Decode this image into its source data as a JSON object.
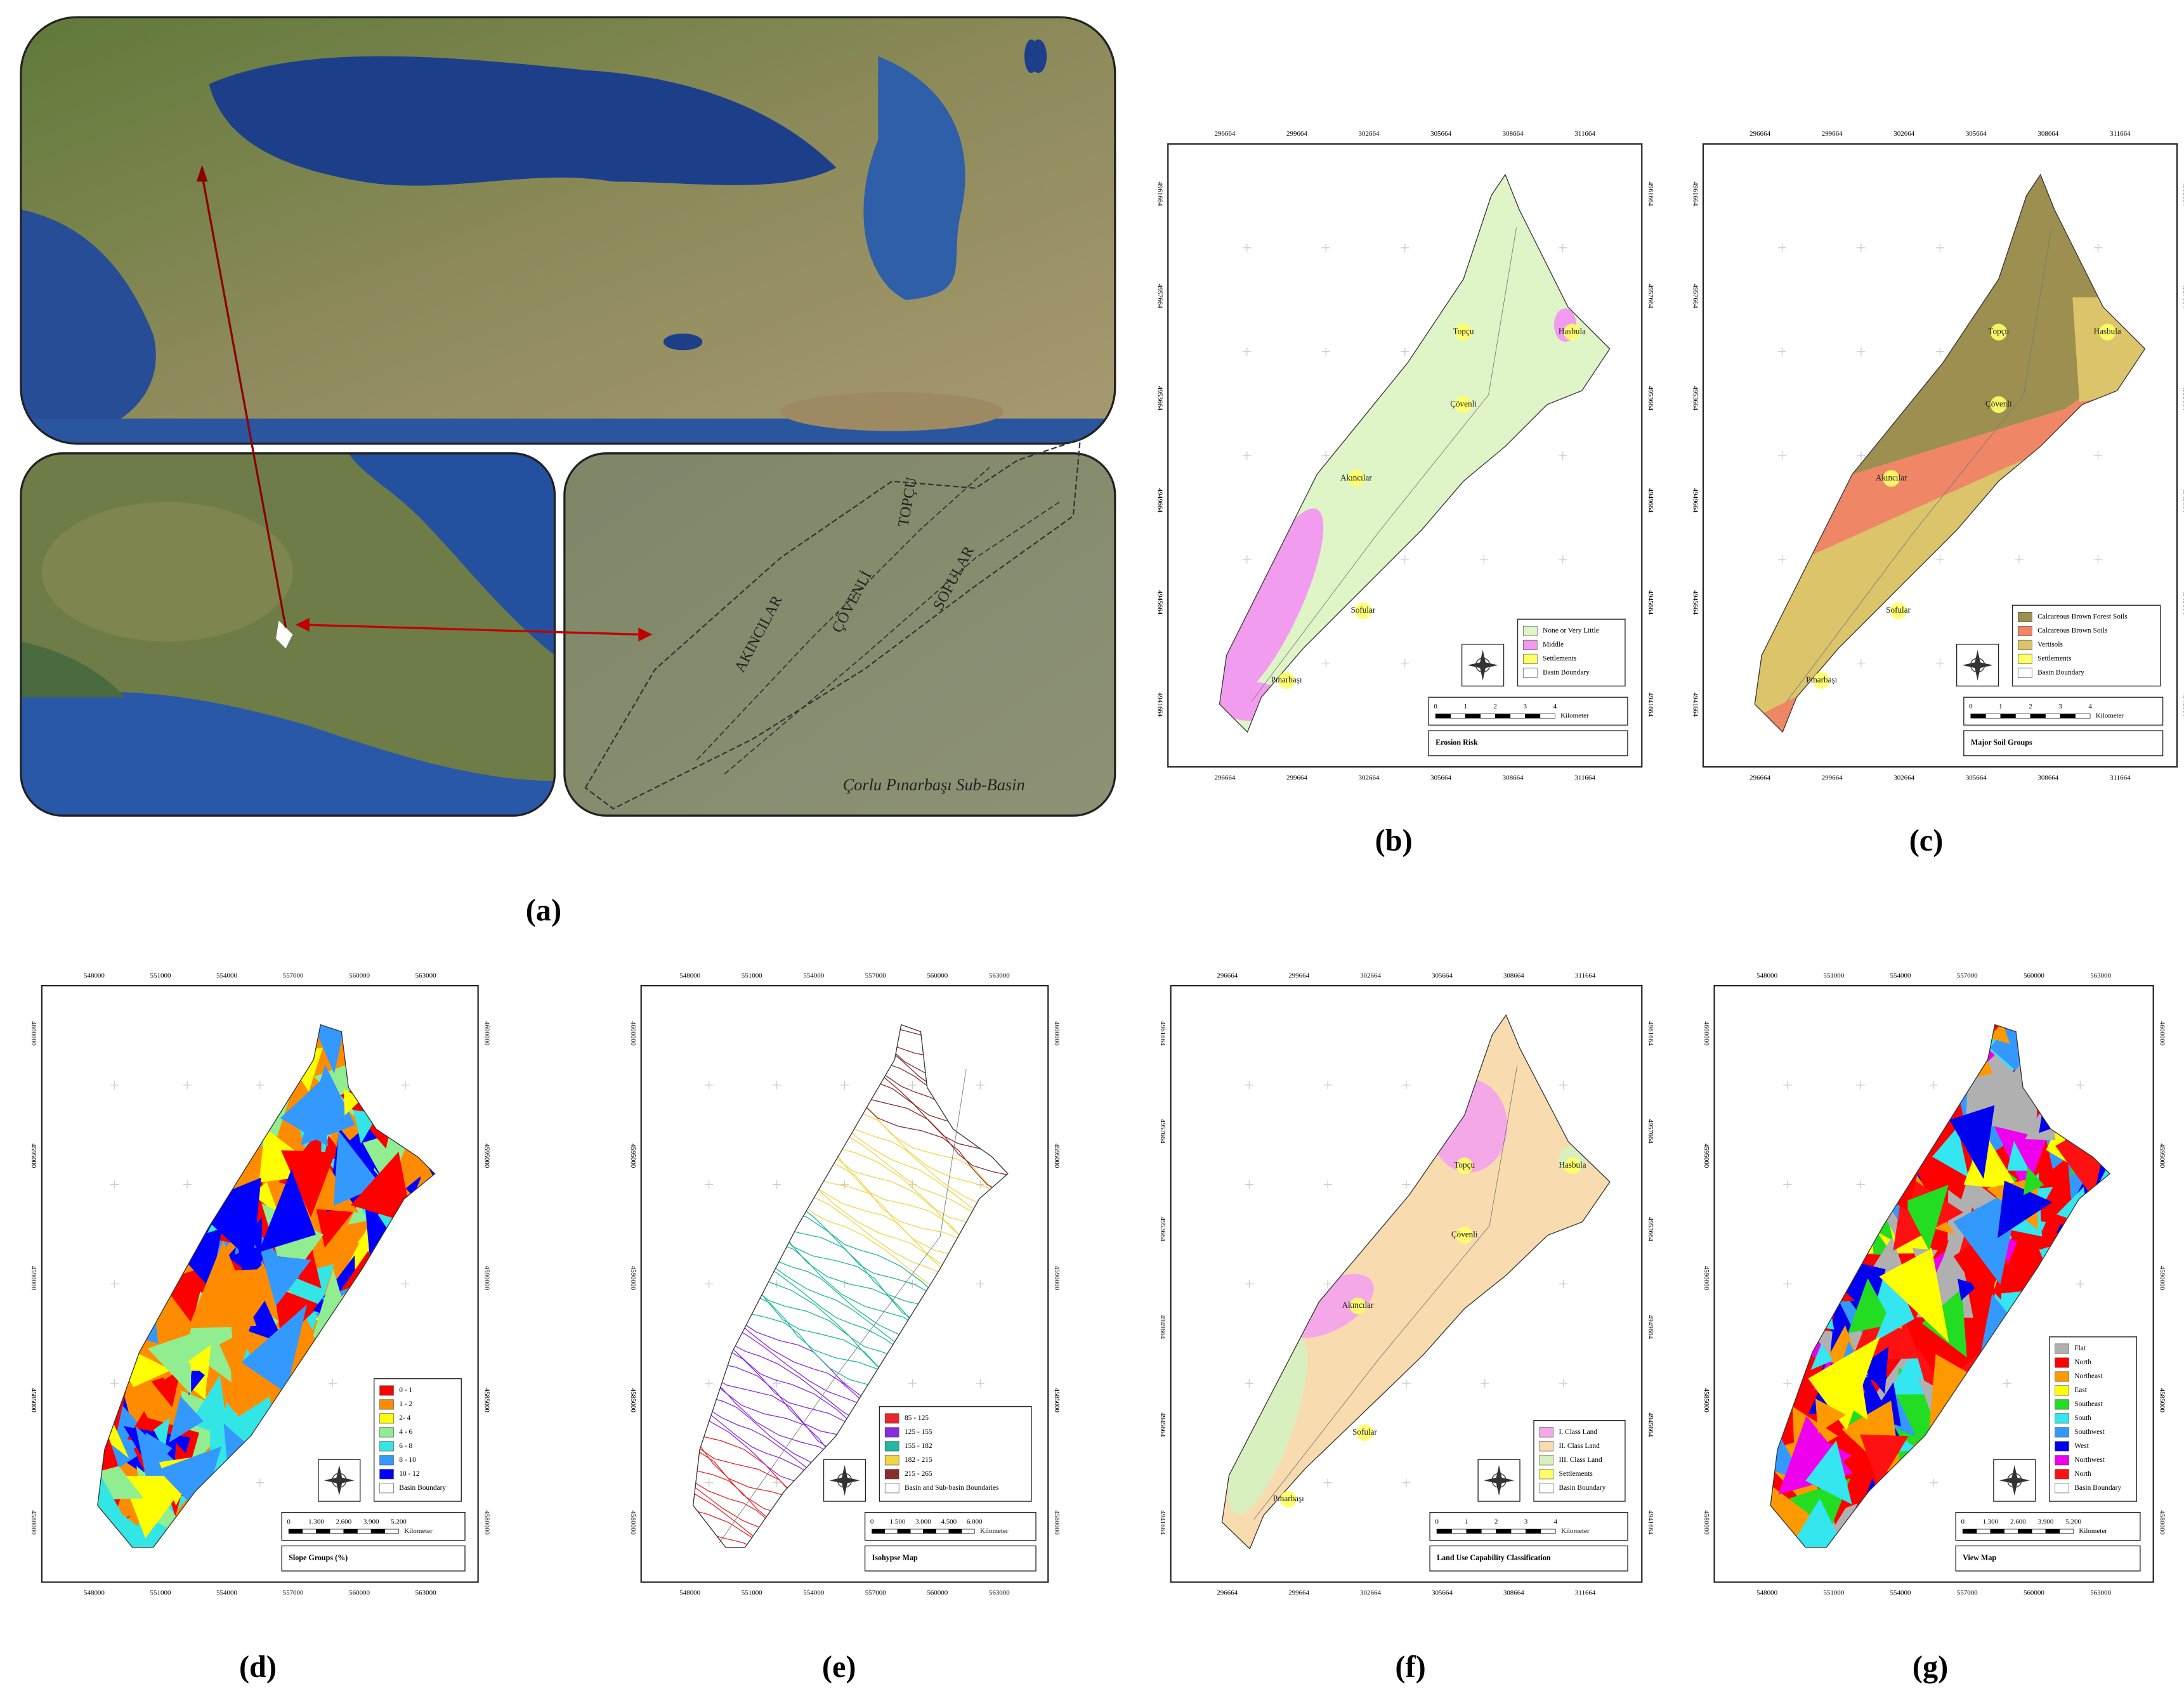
{
  "panel_a": {
    "label": "(a)",
    "inset_title": "Çorlu Pınarbaşı Sub-Basin",
    "sub_basins": [
      "AKINCILAR",
      "ÇÖVENLİ",
      "SOFULAR",
      "TOPÇU"
    ]
  },
  "maps": [
    {
      "label": "(b)",
      "title": "Erosion Risk",
      "style": "erosion",
      "shape": "wide",
      "x_labels": [
        "296664",
        "299664",
        "302664",
        "305664",
        "308664",
        "311664"
      ],
      "y_labels": [
        "4961664",
        "4957664",
        "4953664",
        "4949664",
        "4945664",
        "4941664"
      ],
      "legend": [
        {
          "name": "None or Very Little",
          "color": "#dff5c8"
        },
        {
          "name": "Middle",
          "color": "#f29cf0"
        },
        {
          "name": "Settlements",
          "color": "#ffff66"
        },
        {
          "name": "Basin Boundary",
          "color": "#ffffff"
        }
      ],
      "scale": {
        "ticks": [
          "0",
          "1",
          "2",
          "3",
          "4"
        ],
        "unit": "Kilometer"
      },
      "places": [
        "Topçu",
        "Hasbula",
        "Çövenli",
        "Akıncılar",
        "Sofular",
        "Pınarbaşı"
      ]
    },
    {
      "label": "(c)",
      "title": "Major Soil Groups",
      "style": "soil",
      "shape": "wide",
      "x_labels": [
        "296664",
        "299664",
        "302664",
        "305664",
        "308664",
        "311664"
      ],
      "y_labels": [
        "4961664",
        "4957664",
        "4953664",
        "4949664",
        "4945664",
        "4941664"
      ],
      "legend": [
        {
          "name": "Calcareous Brown Forest Soils",
          "color": "#9c8f4f"
        },
        {
          "name": "Calcareous Brown Soils",
          "color": "#ef8766"
        },
        {
          "name": "Vertisols",
          "color": "#dcc46a"
        },
        {
          "name": "Settlements",
          "color": "#ffff66"
        },
        {
          "name": "Basin Boundary",
          "color": "#ffffff"
        }
      ],
      "scale": {
        "ticks": [
          "0",
          "1",
          "2",
          "3",
          "4"
        ],
        "unit": "Kilometer"
      },
      "places": [
        "Topçu",
        "Hasbula",
        "Çövenli",
        "Akıncılar",
        "Sofular",
        "Pınarbaşı"
      ]
    },
    {
      "label": "(d)",
      "title": "Slope Groups (%)",
      "style": "mosaic",
      "shape": "narrow",
      "x_labels": [
        "548000",
        "551000",
        "554000",
        "557000",
        "560000",
        "563000"
      ],
      "y_labels": [
        "4600000",
        "4595000",
        "4590000",
        "4585000",
        "4580000"
      ],
      "legend": [
        {
          "name": "0 - 1",
          "color": "#ff0000"
        },
        {
          "name": "1 - 2",
          "color": "#ff8c00"
        },
        {
          "name": "2- 4",
          "color": "#ffff00"
        },
        {
          "name": "4 - 6",
          "color": "#90ee90"
        },
        {
          "name": "6 - 8",
          "color": "#33e6e6"
        },
        {
          "name": "8 - 10",
          "color": "#3399ff"
        },
        {
          "name": "10 - 12",
          "color": "#0000ff"
        },
        {
          "name": "Basin Boundary",
          "color": "#ffffff"
        }
      ],
      "scale": {
        "ticks": [
          "0",
          "1.300",
          "2.600",
          "3.900",
          "5.200"
        ],
        "unit": "Kilometer"
      },
      "places": []
    },
    {
      "label": "(e)",
      "title": "Isohypse Map",
      "style": "contour",
      "shape": "narrow",
      "x_labels": [
        "548000",
        "551000",
        "554000",
        "557000",
        "560000",
        "563000"
      ],
      "y_labels": [
        "4600000",
        "4595000",
        "4590000",
        "4585000",
        "4580000"
      ],
      "legend": [
        {
          "name": "85 - 125",
          "color": "#e8282d"
        },
        {
          "name": "125 - 155",
          "color": "#8a2be2"
        },
        {
          "name": "155 - 182",
          "color": "#1fb8a0"
        },
        {
          "name": "182 - 215",
          "color": "#f2d544"
        },
        {
          "name": "215 - 265",
          "color": "#8b2c2c"
        },
        {
          "name": "Basin and Sub-basin Boundaries",
          "color": "#ffffff"
        }
      ],
      "scale": {
        "ticks": [
          "0",
          "1.500",
          "3.000",
          "4.500",
          "6.000"
        ],
        "unit": "Kilometer"
      },
      "places": []
    },
    {
      "label": "(f)",
      "title": "Land Use Capability Classification",
      "style": "landuse",
      "shape": "wide",
      "x_labels": [
        "296664",
        "299664",
        "302664",
        "305664",
        "308664",
        "311664"
      ],
      "y_labels": [
        "4961664",
        "4957664",
        "4953664",
        "4949664",
        "4945664",
        "4941664"
      ],
      "legend": [
        {
          "name": "I. Class Land",
          "color": "#f5a8e8"
        },
        {
          "name": "II. Class Land",
          "color": "#f8dcb0"
        },
        {
          "name": "III. Class Land",
          "color": "#d8f0c0"
        },
        {
          "name": "Settlements",
          "color": "#ffff66"
        },
        {
          "name": "Basin Boundary",
          "color": "#ffffff"
        }
      ],
      "scale": {
        "ticks": [
          "0",
          "1",
          "2",
          "3",
          "4"
        ],
        "unit": "Kilometer"
      },
      "places": [
        "Topçu",
        "Hasbula",
        "Çövenli",
        "Akıncılar",
        "Sofular",
        "Pınarbaşı"
      ]
    },
    {
      "label": "(g)",
      "title": "View Map",
      "style": "mosaic",
      "shape": "narrow",
      "x_labels": [
        "548000",
        "551000",
        "554000",
        "557000",
        "560000",
        "563000"
      ],
      "y_labels": [
        "4600000",
        "4595000",
        "4590000",
        "4585000",
        "4580000"
      ],
      "legend": [
        {
          "name": "Flat",
          "color": "#b0b0b0"
        },
        {
          "name": "North",
          "color": "#ff0000"
        },
        {
          "name": "Northeast",
          "color": "#ff9900"
        },
        {
          "name": "East",
          "color": "#ffff00"
        },
        {
          "name": "Southeast",
          "color": "#22dd22"
        },
        {
          "name": "South",
          "color": "#33e6f0"
        },
        {
          "name": "Southwest",
          "color": "#3399ff"
        },
        {
          "name": "West",
          "color": "#0000ee"
        },
        {
          "name": "Northwest",
          "color": "#ee00ee"
        },
        {
          "name": "North",
          "color": "#ff1111"
        },
        {
          "name": "Basin Boundary",
          "color": "#ffffff"
        }
      ],
      "scale": {
        "ticks": [
          "0",
          "1.300",
          "2.600",
          "3.900",
          "5.200"
        ],
        "unit": "Kilometer"
      },
      "places": []
    }
  ]
}
